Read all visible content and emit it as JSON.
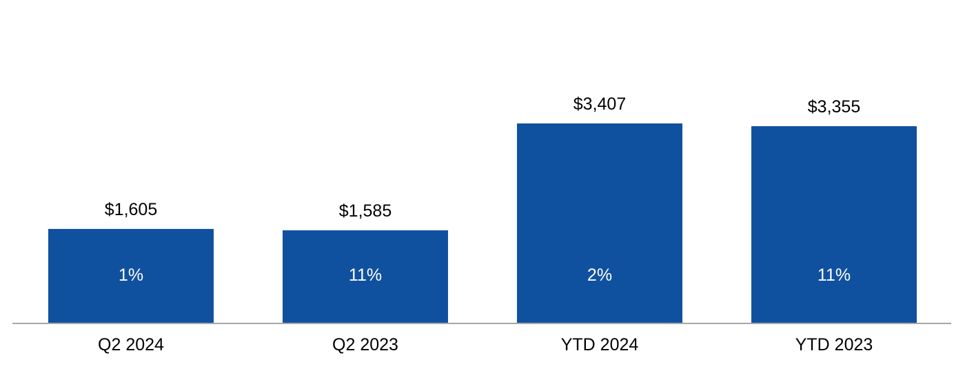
{
  "chart_data": {
    "type": "bar",
    "title": "",
    "xlabel": "",
    "ylabel": "",
    "categories": [
      "Q2 2024",
      "Q2 2023",
      "YTD 2024",
      "YTD 2023"
    ],
    "values": [
      1605,
      1585,
      3407,
      3355
    ],
    "value_labels": [
      "$1,605",
      "$1,585",
      "$3,407",
      "$3,355"
    ],
    "pct_labels": [
      "1%",
      "11%",
      "2%",
      "11%"
    ],
    "ylim": [
      0,
      3407
    ],
    "grid": false,
    "legend": false,
    "bar_color": "#10519f",
    "baseline_color": "#a6a6a6",
    "value_label_color": "#000000",
    "pct_label_color": "#ffffff"
  }
}
